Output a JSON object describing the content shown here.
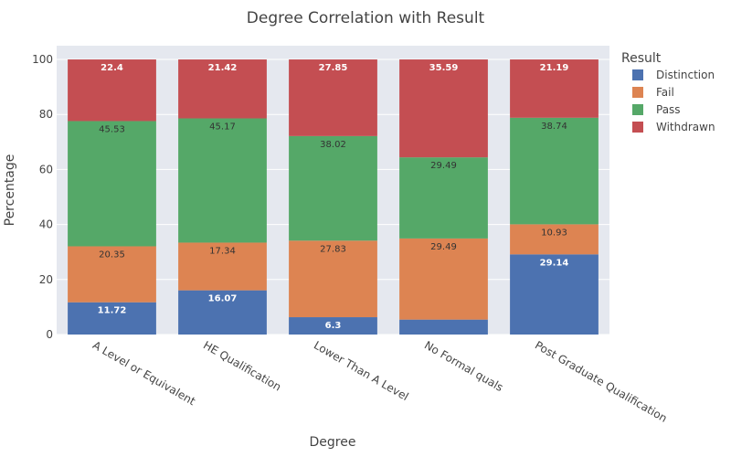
{
  "chart_data": {
    "type": "bar",
    "stacked": true,
    "title": "Degree Correlation with Result",
    "xlabel": "Degree",
    "ylabel": "Percentage",
    "ylim": [
      0,
      105
    ],
    "yticks": [
      0,
      20,
      40,
      60,
      80,
      100
    ],
    "grid": true,
    "legend_title": "Result",
    "legend_position": "top-right",
    "categories": [
      "A Level or Equivalent",
      "HE Qualification",
      "Lower Than A Level",
      "No Formal quals",
      "Post Graduate Qualification"
    ],
    "series": [
      {
        "name": "Distinction",
        "color": "#4c72b0",
        "values": [
          11.72,
          16.07,
          6.3,
          5.43,
          29.14
        ],
        "labels": [
          "11.72",
          "16.07",
          "6.3",
          "",
          "29.14"
        ],
        "label_color": "#ffffff"
      },
      {
        "name": "Fail",
        "color": "#dd8452",
        "values": [
          20.35,
          17.34,
          27.83,
          29.49,
          10.93
        ],
        "labels": [
          "20.35",
          "17.34",
          "27.83",
          "29.49",
          "10.93"
        ],
        "label_color": "#333333"
      },
      {
        "name": "Pass",
        "color": "#55a868",
        "values": [
          45.53,
          45.17,
          38.02,
          29.49,
          38.74
        ],
        "labels": [
          "45.53",
          "45.17",
          "38.02",
          "29.49",
          "38.74"
        ],
        "label_color": "#333333"
      },
      {
        "name": "Withdrawn",
        "color": "#c44e52",
        "values": [
          22.4,
          21.42,
          27.85,
          35.59,
          21.19
        ],
        "labels": [
          "22.4",
          "21.42",
          "27.85",
          "35.59",
          "21.19"
        ],
        "label_color": "#ffffff"
      }
    ],
    "plot_bg": "#e5e8ef",
    "grid_color": "#ffffff"
  }
}
